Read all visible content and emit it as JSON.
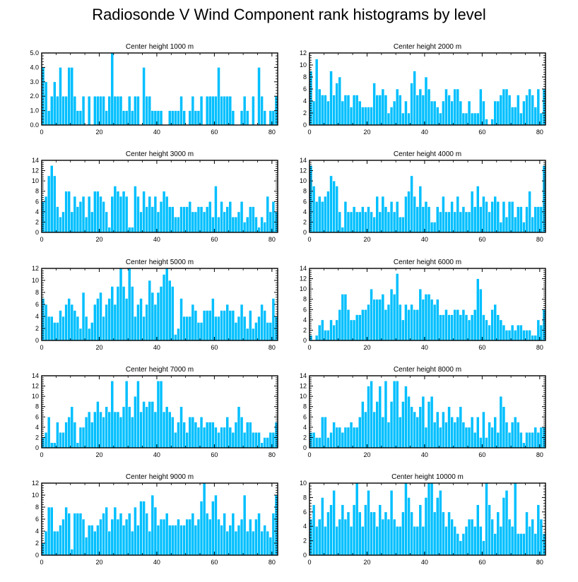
{
  "title": "Radiosonde V Wind Component rank histograms by level",
  "colors": {
    "bar": "#00bfff",
    "bar_edge": "#ffffff",
    "axis": "#000000"
  },
  "chart_data": [
    {
      "type": "bar",
      "title": "Center height 1000 m",
      "xlim": [
        0,
        82
      ],
      "ylim": [
        0,
        5
      ],
      "yticks": [
        0,
        1,
        2,
        3,
        4,
        5
      ],
      "ytick_labels": [
        "0.0",
        "1.0",
        "2.0",
        "3.0",
        "4.0",
        "5.0"
      ],
      "xticks": [
        0,
        20,
        40,
        60,
        80
      ],
      "values": [
        4,
        3,
        1,
        2,
        3,
        2,
        4,
        2,
        2,
        4,
        4,
        2,
        1,
        1,
        2,
        0,
        2,
        0,
        2,
        2,
        2,
        2,
        1,
        2,
        5,
        2,
        2,
        2,
        1,
        1,
        2,
        1,
        2,
        2,
        0,
        4,
        2,
        2,
        1,
        1,
        1,
        1,
        0,
        0,
        1,
        1,
        1,
        1,
        2,
        1,
        0,
        1,
        2,
        1,
        1,
        2,
        0,
        2,
        2,
        2,
        2,
        4,
        2,
        2,
        2,
        2,
        1,
        0,
        0,
        1,
        2,
        1,
        0,
        2,
        0,
        4,
        2,
        1,
        0,
        1,
        1,
        2
      ]
    },
    {
      "type": "bar",
      "title": "Center height 2000 m",
      "xlim": [
        0,
        82
      ],
      "ylim": [
        0,
        12
      ],
      "yticks": [
        0,
        2,
        4,
        6,
        8,
        10,
        12
      ],
      "ytick_labels": [
        "0",
        "2",
        "4",
        "6",
        "8",
        "10",
        "12"
      ],
      "xticks": [
        0,
        20,
        40,
        60,
        80
      ],
      "values": [
        9,
        4,
        11,
        6,
        5,
        5,
        4,
        9,
        5,
        7,
        8,
        4,
        5,
        5,
        3,
        5,
        5,
        4,
        3,
        3,
        3,
        3,
        7,
        5,
        5,
        6,
        5,
        2,
        3,
        4,
        6,
        5,
        2,
        4,
        2,
        7,
        9,
        5,
        6,
        5,
        8,
        6,
        4,
        4,
        3,
        2,
        4,
        6,
        5,
        4,
        6,
        6,
        4,
        2,
        2,
        4,
        2,
        2,
        2,
        6,
        4,
        1,
        0,
        1,
        4,
        4,
        5,
        6,
        6,
        5,
        3,
        3,
        5,
        2,
        4,
        5,
        6,
        5,
        3,
        6,
        2,
        6
      ]
    },
    {
      "type": "bar",
      "title": "Center height 3000 m",
      "xlim": [
        0,
        82
      ],
      "ylim": [
        0,
        14
      ],
      "yticks": [
        0,
        2,
        4,
        6,
        8,
        10,
        12,
        14
      ],
      "ytick_labels": [
        "0",
        "2",
        "4",
        "6",
        "8",
        "10",
        "12",
        "14"
      ],
      "xticks": [
        0,
        20,
        40,
        60,
        80
      ],
      "values": [
        6,
        7,
        11,
        13,
        11,
        5,
        3,
        4,
        8,
        8,
        4,
        7,
        5,
        6,
        7,
        3,
        7,
        4,
        8,
        8,
        7,
        6,
        4,
        1,
        7,
        9,
        8,
        7,
        8,
        7,
        1,
        1,
        9,
        7,
        4,
        8,
        5,
        7,
        5,
        7,
        4,
        6,
        8,
        7,
        5,
        5,
        3,
        3,
        5,
        5,
        5,
        6,
        4,
        4,
        5,
        5,
        4,
        5,
        6,
        3,
        9,
        3,
        6,
        4,
        5,
        6,
        3,
        3,
        4,
        6,
        2,
        3,
        5,
        5,
        3,
        1,
        3,
        2,
        7,
        4,
        6,
        4
      ]
    },
    {
      "type": "bar",
      "title": "Center height 4000 m",
      "xlim": [
        0,
        82
      ],
      "ylim": [
        0,
        14
      ],
      "yticks": [
        0,
        2,
        4,
        6,
        8,
        10,
        12,
        14
      ],
      "ytick_labels": [
        "0",
        "2",
        "4",
        "6",
        "8",
        "10",
        "12",
        "14"
      ],
      "xticks": [
        0,
        20,
        40,
        60,
        80
      ],
      "values": [
        13,
        9,
        6,
        7,
        6,
        7,
        8,
        11,
        10,
        9,
        4,
        1,
        6,
        4,
        4,
        5,
        4,
        4,
        5,
        4,
        5,
        4,
        3,
        7,
        4,
        7,
        5,
        4,
        6,
        4,
        6,
        3,
        3,
        7,
        8,
        11,
        7,
        5,
        9,
        5,
        6,
        5,
        2,
        2,
        5,
        4,
        7,
        4,
        4,
        6,
        4,
        7,
        4,
        5,
        4,
        4,
        8,
        5,
        9,
        5,
        7,
        6,
        4,
        6,
        7,
        6,
        2,
        6,
        3,
        6,
        6,
        3,
        5,
        5,
        2,
        5,
        8,
        3,
        5,
        5,
        5,
        13
      ]
    },
    {
      "type": "bar",
      "title": "Center height 5000 m",
      "xlim": [
        0,
        82
      ],
      "ylim": [
        0,
        12
      ],
      "yticks": [
        0,
        2,
        4,
        6,
        8,
        10,
        12
      ],
      "ytick_labels": [
        "0",
        "2",
        "4",
        "6",
        "8",
        "10",
        "12"
      ],
      "xticks": [
        0,
        20,
        40,
        60,
        80
      ],
      "values": [
        7,
        6,
        4,
        4,
        3,
        3,
        5,
        4,
        6,
        7,
        6,
        5,
        4,
        2,
        8,
        4,
        2,
        3,
        6,
        7,
        8,
        4,
        6,
        7,
        9,
        6,
        9,
        12,
        9,
        7,
        12,
        9,
        4,
        6,
        7,
        4,
        6,
        10,
        8,
        6,
        8,
        9,
        11,
        12,
        10,
        9,
        1,
        2,
        7,
        4,
        4,
        4,
        6,
        5,
        3,
        3,
        5,
        5,
        5,
        7,
        4,
        4,
        5,
        5,
        6,
        5,
        5,
        3,
        4,
        6,
        4,
        2,
        5,
        2,
        3,
        4,
        6,
        5,
        3,
        3,
        7,
        4
      ]
    },
    {
      "type": "bar",
      "title": "Center height 6000 m",
      "xlim": [
        0,
        82
      ],
      "ylim": [
        0,
        14
      ],
      "yticks": [
        0,
        2,
        4,
        6,
        8,
        10,
        12,
        14
      ],
      "ytick_labels": [
        "0",
        "2",
        "4",
        "6",
        "8",
        "10",
        "12",
        "14"
      ],
      "xticks": [
        0,
        20,
        40,
        60,
        80
      ],
      "values": [
        1,
        0,
        1,
        3,
        4,
        2,
        2,
        4,
        3,
        4,
        6,
        9,
        9,
        6,
        4,
        4,
        5,
        5,
        6,
        6,
        7,
        10,
        8,
        8,
        8,
        9,
        6,
        7,
        10,
        9,
        13,
        7,
        4,
        7,
        6,
        7,
        6,
        6,
        10,
        8,
        9,
        9,
        8,
        7,
        8,
        5,
        5,
        6,
        5,
        5,
        6,
        6,
        5,
        6,
        5,
        4,
        5,
        6,
        12,
        10,
        5,
        4,
        3,
        6,
        7,
        5,
        4,
        3,
        2,
        2,
        3,
        2,
        3,
        3,
        2,
        2,
        2,
        1,
        1,
        4,
        3,
        6
      ]
    },
    {
      "type": "bar",
      "title": "Center height 7000 m",
      "xlim": [
        0,
        82
      ],
      "ylim": [
        0,
        14
      ],
      "yticks": [
        0,
        2,
        4,
        6,
        8,
        10,
        12,
        14
      ],
      "ytick_labels": [
        "0",
        "2",
        "4",
        "6",
        "8",
        "10",
        "12",
        "14"
      ],
      "xticks": [
        0,
        20,
        40,
        60,
        80
      ],
      "values": [
        2,
        3,
        6,
        1,
        1,
        5,
        3,
        3,
        5,
        6,
        8,
        5,
        1,
        4,
        4,
        6,
        7,
        5,
        7,
        9,
        7,
        6,
        8,
        7,
        13,
        7,
        7,
        6,
        8,
        13,
        8,
        6,
        10,
        13,
        7,
        9,
        8,
        9,
        9,
        7,
        13,
        13,
        7,
        8,
        7,
        6,
        3,
        5,
        8,
        5,
        3,
        6,
        6,
        5,
        4,
        6,
        4,
        5,
        5,
        5,
        4,
        3,
        4,
        4,
        6,
        4,
        3,
        5,
        8,
        6,
        3,
        5,
        5,
        3,
        3,
        3,
        1,
        2,
        2,
        3,
        3,
        5
      ]
    },
    {
      "type": "bar",
      "title": "Center height 8000 m",
      "xlim": [
        0,
        82
      ],
      "ylim": [
        0,
        14
      ],
      "yticks": [
        0,
        2,
        4,
        6,
        8,
        10,
        12,
        14
      ],
      "ytick_labels": [
        "0",
        "2",
        "4",
        "6",
        "8",
        "10",
        "12",
        "14"
      ],
      "xticks": [
        0,
        20,
        40,
        60,
        80
      ],
      "values": [
        3,
        3,
        2,
        2,
        6,
        6,
        2,
        3,
        5,
        4,
        4,
        3,
        4,
        4,
        5,
        4,
        4,
        6,
        9,
        7,
        12,
        13,
        7,
        9,
        12,
        6,
        13,
        5,
        9,
        13,
        13,
        6,
        9,
        12,
        10,
        8,
        7,
        6,
        8,
        10,
        4,
        9,
        10,
        5,
        7,
        4,
        7,
        5,
        8,
        6,
        5,
        6,
        8,
        5,
        4,
        4,
        6,
        3,
        6,
        2,
        7,
        2,
        5,
        4,
        6,
        3,
        10,
        8,
        5,
        3,
        5,
        6,
        5,
        3,
        1,
        3,
        3,
        3,
        4,
        3,
        4,
        4
      ]
    },
    {
      "type": "bar",
      "title": "Center height 9000 m",
      "xlim": [
        0,
        82
      ],
      "ylim": [
        0,
        12
      ],
      "yticks": [
        0,
        2,
        4,
        6,
        8,
        10,
        12
      ],
      "ytick_labels": [
        "0",
        "2",
        "4",
        "6",
        "8",
        "10",
        "12"
      ],
      "xticks": [
        0,
        20,
        40,
        60,
        80
      ],
      "values": [
        2,
        4,
        8,
        8,
        4,
        4,
        5,
        6,
        8,
        7,
        1,
        7,
        7,
        7,
        6,
        3,
        5,
        5,
        4,
        5,
        6,
        7,
        8,
        4,
        6,
        8,
        6,
        7,
        5,
        6,
        7,
        4,
        8,
        5,
        9,
        9,
        7,
        4,
        10,
        8,
        5,
        6,
        6,
        7,
        5,
        5,
        5,
        6,
        5,
        5,
        6,
        6,
        7,
        5,
        6,
        9,
        12,
        7,
        6,
        9,
        10,
        6,
        5,
        7,
        4,
        5,
        7,
        4,
        5,
        6,
        10,
        4,
        6,
        4,
        6,
        7,
        4,
        5,
        4,
        3,
        7,
        10
      ]
    },
    {
      "type": "bar",
      "title": "Center height 10000 m",
      "xlim": [
        0,
        82
      ],
      "ylim": [
        0,
        10
      ],
      "yticks": [
        0,
        2,
        4,
        6,
        8,
        10
      ],
      "ytick_labels": [
        "0",
        "2",
        "4",
        "6",
        "8",
        "10"
      ],
      "xticks": [
        0,
        20,
        40,
        60,
        80
      ],
      "values": [
        5,
        7,
        4,
        5,
        8,
        4,
        6,
        7,
        9,
        4,
        5,
        7,
        5,
        6,
        4,
        7,
        10,
        6,
        4,
        7,
        9,
        6,
        6,
        4,
        7,
        5,
        6,
        5,
        9,
        5,
        4,
        4,
        6,
        10,
        8,
        6,
        4,
        4,
        7,
        4,
        8,
        10,
        10,
        6,
        8,
        9,
        6,
        4,
        6,
        5,
        4,
        3,
        2,
        3,
        4,
        5,
        5,
        4,
        7,
        4,
        2,
        10,
        7,
        5,
        3,
        6,
        4,
        8,
        9,
        5,
        4,
        10,
        3,
        3,
        3,
        6,
        4,
        5,
        3,
        7,
        5,
        3
      ]
    }
  ]
}
